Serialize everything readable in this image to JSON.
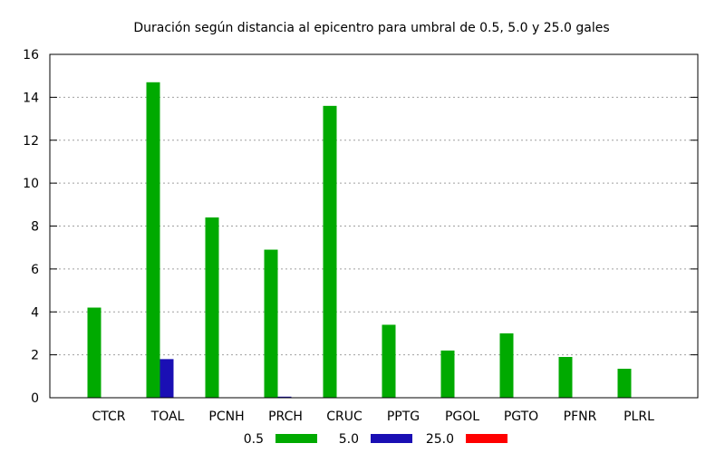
{
  "chart_data": {
    "type": "bar",
    "title": "Duración según distancia al epicentro para umbral de 0.5, 5.0 y 25.0 gales",
    "xlabel": "",
    "ylabel": "",
    "ylim": [
      0,
      16
    ],
    "yticks": [
      0,
      2,
      4,
      6,
      8,
      10,
      12,
      14,
      16
    ],
    "grid": "horizontal dotted",
    "legend_position": "bottom",
    "categories": [
      "CTCR",
      "TOAL",
      "PCNH",
      "PRCH",
      "CRUC",
      "PPTG",
      "PGOL",
      "PGTO",
      "PFNR",
      "PLRL"
    ],
    "series": [
      {
        "name": "0.5",
        "color": "#00aa00",
        "values": [
          4.2,
          14.7,
          8.4,
          6.9,
          13.6,
          3.4,
          2.2,
          3.0,
          1.9,
          1.35
        ]
      },
      {
        "name": "5.0",
        "color": "#1a0fb4",
        "values": [
          0,
          1.8,
          0,
          0.05,
          0,
          0,
          0,
          0,
          0,
          0
        ]
      },
      {
        "name": "25.0",
        "color": "#ff0000",
        "values": [
          0,
          0,
          0,
          0,
          0,
          0,
          0,
          0,
          0,
          0
        ]
      }
    ]
  }
}
